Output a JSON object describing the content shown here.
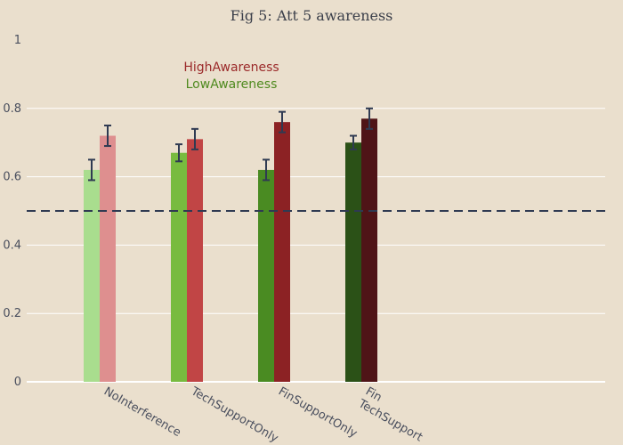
{
  "chart_data": {
    "type": "bar",
    "title": "Fig 5: Att 5 awareness",
    "xlabel": "",
    "ylabel": "",
    "ylim": [
      0,
      1
    ],
    "yticks": [
      "0",
      "0.2",
      "0.4",
      "0.6",
      "0.8",
      "1"
    ],
    "ytick_values": [
      0,
      0.2,
      0.4,
      0.6,
      0.8,
      1
    ],
    "categories": [
      [
        "NoInterference"
      ],
      [
        "TechSupportOnly"
      ],
      [
        "FinSupportOnly"
      ],
      [
        "Fin",
        "TechSupport"
      ]
    ],
    "reference_line": 0.5,
    "grid": true,
    "legend_placement": "top-center",
    "legend": [
      {
        "label": "HighAwareness",
        "color": "#9b2a2a"
      },
      {
        "label": "LowAwareness",
        "color": "#4f8a1f"
      }
    ],
    "series": [
      {
        "name": "LowAwareness",
        "values": [
          0.62,
          0.67,
          0.62,
          0.7
        ],
        "errors": [
          0.03,
          0.025,
          0.03,
          0.02
        ],
        "colors": [
          "#a9dd8e",
          "#78bb3f",
          "#4a8b22",
          "#2b5117"
        ]
      },
      {
        "name": "HighAwareness",
        "values": [
          0.72,
          0.71,
          0.76,
          0.77
        ],
        "errors": [
          0.03,
          0.03,
          0.03,
          0.03
        ],
        "colors": [
          "#de8f8f",
          "#c14545",
          "#8c2224",
          "#4f1417"
        ]
      }
    ],
    "colors": {
      "grid": "#ffffff",
      "reference": "#2f3a52",
      "errorbar": "#2f3a52"
    }
  }
}
